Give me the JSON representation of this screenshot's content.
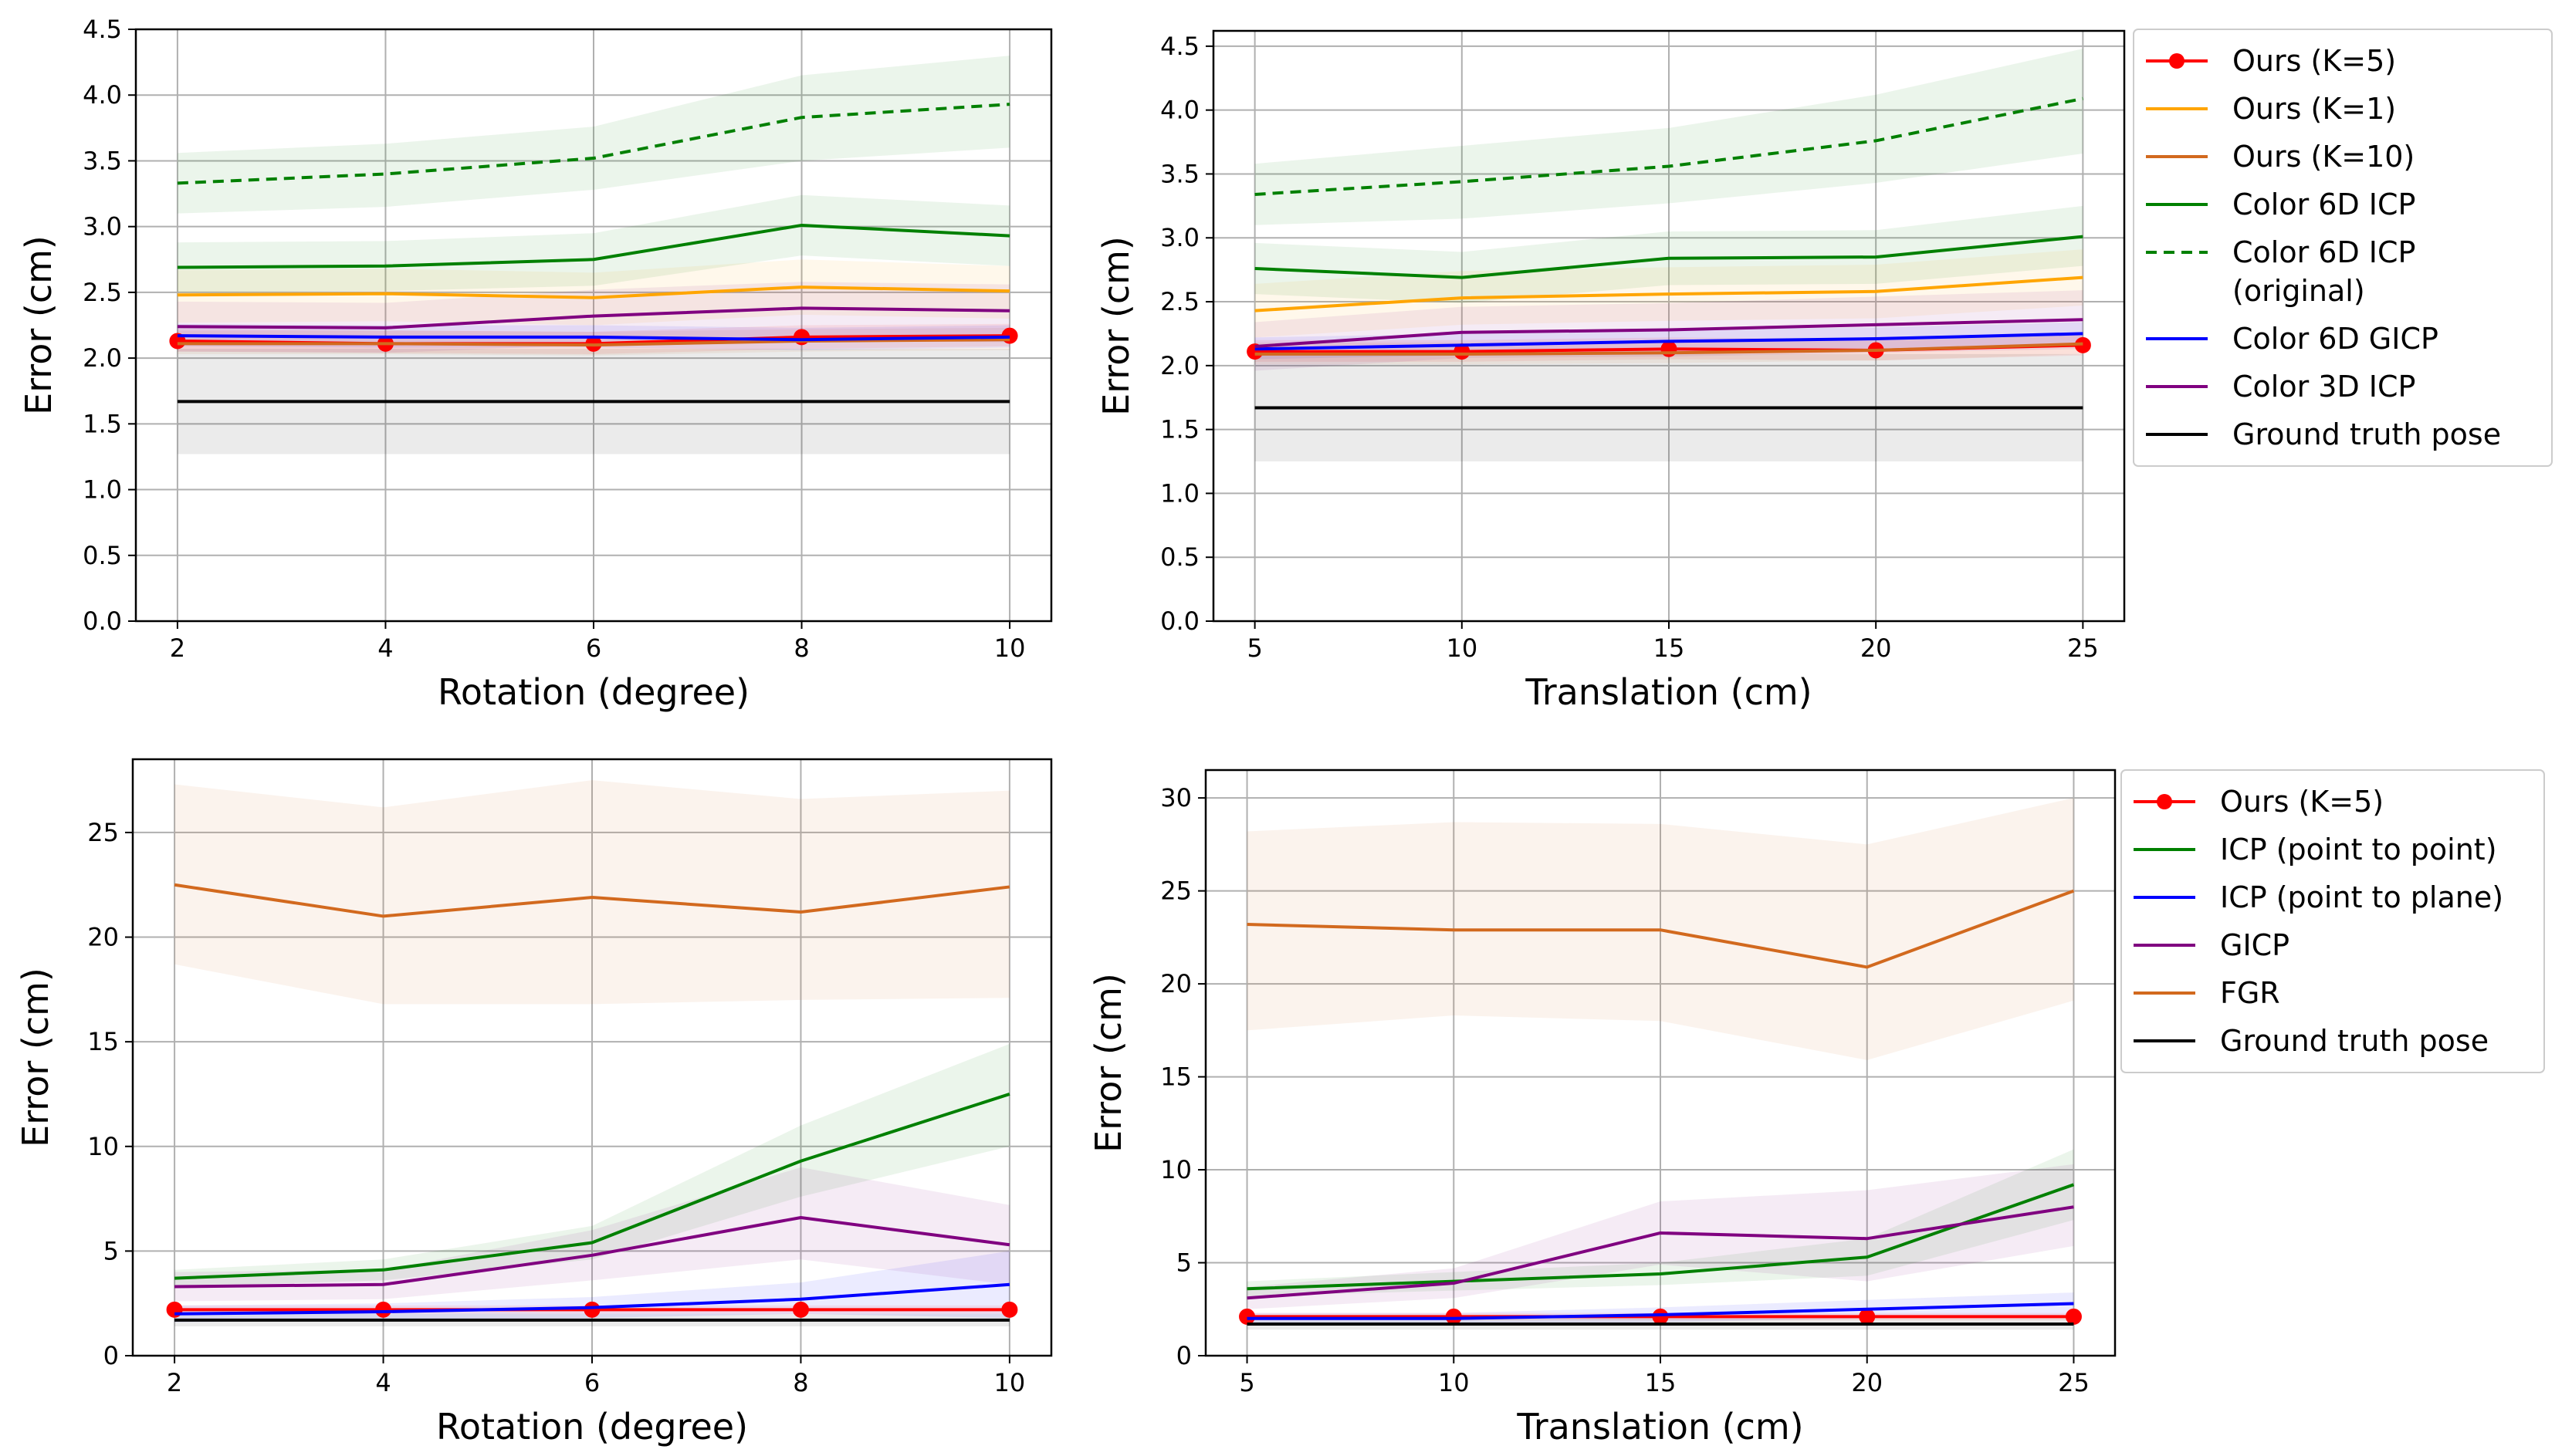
{
  "chart_data": [
    {
      "type": "line",
      "xlabel": "Rotation (degree)",
      "ylabel": "Error (cm)",
      "x": [
        2,
        4,
        6,
        8,
        10
      ],
      "xticks": [
        2,
        4,
        6,
        8,
        10
      ],
      "xticklabels": [
        "2",
        "4",
        "6",
        "8",
        "10"
      ],
      "xlim": [
        1.6,
        10.4
      ],
      "yticks": [
        0,
        0.5,
        1.0,
        1.5,
        2.0,
        2.5,
        3.0,
        3.5,
        4.0,
        4.5
      ],
      "yticklabels": [
        "0.0",
        "0.5",
        "1.0",
        "1.5",
        "2.0",
        "2.5",
        "3.0",
        "3.5",
        "4.0",
        "4.5"
      ],
      "ylim": [
        0,
        4.5
      ],
      "grid": true,
      "series": [
        {
          "name": "Ours (K=5)",
          "color": "#ff0000",
          "marker": "circle",
          "values": [
            2.13,
            2.11,
            2.11,
            2.16,
            2.17
          ],
          "band_low": [
            2.05,
            2.04,
            2.03,
            2.07,
            2.09
          ],
          "band_high": [
            2.23,
            2.21,
            2.2,
            2.25,
            2.26
          ]
        },
        {
          "name": "Ours (K=1)",
          "color": "#ffa500",
          "values": [
            2.48,
            2.49,
            2.46,
            2.54,
            2.51
          ],
          "band_low": [
            2.27,
            2.28,
            2.25,
            2.33,
            2.3
          ],
          "band_high": [
            2.67,
            2.68,
            2.65,
            2.75,
            2.7
          ]
        },
        {
          "name": "Ours (K=10)",
          "color": "#d2691e",
          "values": [
            2.11,
            2.11,
            2.1,
            2.13,
            2.14
          ],
          "band_low": [
            2.03,
            2.03,
            2.02,
            2.05,
            2.06
          ],
          "band_high": [
            2.21,
            2.21,
            2.2,
            2.22,
            2.23
          ]
        },
        {
          "name": "Color 6D ICP",
          "color": "#008000",
          "values": [
            2.69,
            2.7,
            2.75,
            3.01,
            2.93
          ],
          "band_low": [
            2.5,
            2.51,
            2.55,
            2.78,
            2.7
          ],
          "band_high": [
            2.88,
            2.89,
            2.95,
            3.24,
            3.16
          ]
        },
        {
          "name": "Color 6D ICP (original)",
          "color": "#008000",
          "dash": true,
          "values": [
            3.33,
            3.4,
            3.52,
            3.83,
            3.93
          ],
          "band_low": [
            3.1,
            3.15,
            3.28,
            3.5,
            3.6
          ],
          "band_high": [
            3.56,
            3.63,
            3.76,
            4.15,
            4.3
          ]
        },
        {
          "name": "Color 6D GICP",
          "color": "#0000ff",
          "values": [
            2.17,
            2.16,
            2.16,
            2.14,
            2.16
          ],
          "band_low": [
            2.09,
            2.08,
            2.08,
            2.06,
            2.08
          ],
          "band_high": [
            2.26,
            2.25,
            2.25,
            2.23,
            2.25
          ]
        },
        {
          "name": "Color 3D ICP",
          "color": "#800080",
          "values": [
            2.24,
            2.23,
            2.32,
            2.38,
            2.36
          ],
          "band_low": [
            2.05,
            2.04,
            2.1,
            2.14,
            2.12
          ],
          "band_high": [
            2.43,
            2.42,
            2.52,
            2.58,
            2.56
          ]
        },
        {
          "name": "Ground truth pose",
          "color": "#000000",
          "values": [
            1.67,
            1.67,
            1.67,
            1.67,
            1.67
          ],
          "band_low": [
            1.27,
            1.27,
            1.27,
            1.27,
            1.27
          ],
          "band_high": [
            2.07,
            2.07,
            2.07,
            2.07,
            2.07
          ]
        }
      ]
    },
    {
      "type": "line",
      "xlabel": "Translation (cm)",
      "ylabel": "Error (cm)",
      "x": [
        5,
        10,
        15,
        20,
        25
      ],
      "xticks": [
        5,
        10,
        15,
        20,
        25
      ],
      "xticklabels": [
        "5",
        "10",
        "15",
        "20",
        "25"
      ],
      "xlim": [
        4,
        26
      ],
      "yticks": [
        0,
        0.5,
        1.0,
        1.5,
        2.0,
        2.5,
        3.0,
        3.5,
        4.0,
        4.5
      ],
      "yticklabels": [
        "0.0",
        "0.5",
        "1.0",
        "1.5",
        "2.0",
        "2.5",
        "3.0",
        "3.5",
        "4.0",
        "4.5"
      ],
      "ylim": [
        0,
        4.62
      ],
      "grid": true,
      "legend": {
        "placement": "outside-right",
        "entries": [
          {
            "label": "Ours (K=5)",
            "color": "#ff0000",
            "marker": "circle"
          },
          {
            "label": "Ours (K=1)",
            "color": "#ffa500"
          },
          {
            "label": "Ours (K=10)",
            "color": "#d2691e"
          },
          {
            "label": "Color 6D ICP",
            "color": "#008000"
          },
          {
            "label": "Color 6D ICP\n(original)",
            "color": "#008000",
            "dash": true
          },
          {
            "label": "Color 6D GICP",
            "color": "#0000ff"
          },
          {
            "label": "Color 3D ICP",
            "color": "#800080"
          },
          {
            "label": "Ground truth pose",
            "color": "#000000"
          }
        ]
      },
      "series": [
        {
          "name": "Ours (K=5)",
          "color": "#ff0000",
          "marker": "circle",
          "values": [
            2.11,
            2.11,
            2.13,
            2.12,
            2.16
          ],
          "band_low": [
            2.03,
            2.03,
            2.05,
            2.04,
            2.08
          ],
          "band_high": [
            2.2,
            2.2,
            2.22,
            2.21,
            2.25
          ]
        },
        {
          "name": "Ours (K=1)",
          "color": "#ffa500",
          "values": [
            2.43,
            2.53,
            2.56,
            2.58,
            2.69
          ],
          "band_low": [
            2.22,
            2.32,
            2.35,
            2.37,
            2.47
          ],
          "band_high": [
            2.64,
            2.74,
            2.77,
            2.79,
            2.91
          ]
        },
        {
          "name": "Ours (K=10)",
          "color": "#d2691e",
          "values": [
            2.09,
            2.09,
            2.1,
            2.12,
            2.17
          ],
          "band_low": [
            2.01,
            2.01,
            2.02,
            2.04,
            2.09
          ],
          "band_high": [
            2.18,
            2.18,
            2.19,
            2.21,
            2.26
          ]
        },
        {
          "name": "Color 6D ICP",
          "color": "#008000",
          "values": [
            2.76,
            2.69,
            2.84,
            2.85,
            3.01
          ],
          "band_low": [
            2.56,
            2.49,
            2.63,
            2.64,
            2.78
          ],
          "band_high": [
            2.96,
            2.89,
            3.05,
            3.06,
            3.25
          ]
        },
        {
          "name": "Color 6D ICP (original)",
          "color": "#008000",
          "dash": true,
          "values": [
            3.34,
            3.44,
            3.56,
            3.76,
            4.09
          ],
          "band_low": [
            3.1,
            3.15,
            3.27,
            3.43,
            3.66
          ],
          "band_high": [
            3.58,
            3.72,
            3.86,
            4.12,
            4.48
          ]
        },
        {
          "name": "Color 6D GICP",
          "color": "#0000ff",
          "values": [
            2.13,
            2.16,
            2.19,
            2.21,
            2.25
          ],
          "band_low": [
            2.05,
            2.08,
            2.1,
            2.12,
            2.16
          ],
          "band_high": [
            2.22,
            2.25,
            2.28,
            2.3,
            2.34
          ]
        },
        {
          "name": "Color 3D ICP",
          "color": "#800080",
          "values": [
            2.15,
            2.26,
            2.28,
            2.32,
            2.36
          ],
          "band_low": [
            1.96,
            2.06,
            2.07,
            2.1,
            2.13
          ],
          "band_high": [
            2.34,
            2.46,
            2.49,
            2.54,
            2.59
          ]
        },
        {
          "name": "Ground truth pose",
          "color": "#000000",
          "values": [
            1.67,
            1.67,
            1.67,
            1.67,
            1.67
          ],
          "band_low": [
            1.25,
            1.25,
            1.25,
            1.25,
            1.25
          ],
          "band_high": [
            2.09,
            2.09,
            2.09,
            2.09,
            2.09
          ]
        }
      ]
    },
    {
      "type": "line",
      "xlabel": "Rotation (degree)",
      "ylabel": "Error (cm)",
      "x": [
        2,
        4,
        6,
        8,
        10
      ],
      "xticks": [
        2,
        4,
        6,
        8,
        10
      ],
      "xticklabels": [
        "2",
        "4",
        "6",
        "8",
        "10"
      ],
      "xlim": [
        1.6,
        10.4
      ],
      "yticks": [
        0,
        5,
        10,
        15,
        20,
        25
      ],
      "yticklabels": [
        "0",
        "5",
        "10",
        "15",
        "20",
        "25"
      ],
      "ylim": [
        0,
        28.5
      ],
      "grid": true,
      "series": [
        {
          "name": "Ours (K=5)",
          "color": "#ff0000",
          "marker": "circle",
          "values": [
            2.2,
            2.2,
            2.2,
            2.2,
            2.2
          ],
          "band_low": [
            2.0,
            2.0,
            2.0,
            2.0,
            2.0
          ],
          "band_high": [
            2.4,
            2.4,
            2.4,
            2.4,
            2.4
          ]
        },
        {
          "name": "ICP (point to point)",
          "color": "#008000",
          "values": [
            3.7,
            4.1,
            5.4,
            9.3,
            12.5
          ],
          "band_low": [
            3.3,
            3.6,
            4.6,
            7.6,
            10.0
          ],
          "band_high": [
            4.1,
            4.6,
            6.2,
            11.0,
            14.9
          ]
        },
        {
          "name": "ICP (point to plane)",
          "color": "#0000ff",
          "values": [
            2.0,
            2.1,
            2.3,
            2.7,
            3.4
          ],
          "band_low": [
            1.6,
            1.7,
            1.8,
            2.0,
            1.8
          ],
          "band_high": [
            2.4,
            2.5,
            2.8,
            3.5,
            5.0
          ]
        },
        {
          "name": "GICP",
          "color": "#800080",
          "values": [
            3.3,
            3.4,
            4.8,
            6.6,
            5.3
          ],
          "band_low": [
            2.6,
            2.7,
            3.6,
            4.6,
            3.4
          ],
          "band_high": [
            4.0,
            4.1,
            6.0,
            9.0,
            7.2
          ]
        },
        {
          "name": "FGR",
          "color": "#d2691e",
          "values": [
            22.5,
            21.0,
            21.9,
            21.2,
            22.4
          ],
          "band_low": [
            18.7,
            16.8,
            16.8,
            17.0,
            17.1
          ],
          "band_high": [
            27.3,
            26.2,
            27.5,
            26.6,
            27.0
          ]
        },
        {
          "name": "Ground truth pose",
          "color": "#000000",
          "values": [
            1.7,
            1.7,
            1.7,
            1.7,
            1.7
          ],
          "band_low": [
            1.4,
            1.4,
            1.4,
            1.4,
            1.4
          ],
          "band_high": [
            2.0,
            2.0,
            2.0,
            2.0,
            2.0
          ]
        }
      ]
    },
    {
      "type": "line",
      "xlabel": "Translation (cm)",
      "ylabel": "Error (cm)",
      "x": [
        5,
        10,
        15,
        20,
        25
      ],
      "xticks": [
        5,
        10,
        15,
        20,
        25
      ],
      "xticklabels": [
        "5",
        "10",
        "15",
        "20",
        "25"
      ],
      "xlim": [
        4,
        26
      ],
      "yticks": [
        0,
        5,
        10,
        15,
        20,
        25,
        30
      ],
      "yticklabels": [
        "0",
        "5",
        "10",
        "15",
        "20",
        "25",
        "30"
      ],
      "ylim": [
        0,
        31.5
      ],
      "grid": true,
      "legend": {
        "placement": "outside-right",
        "entries": [
          {
            "label": "Ours (K=5)",
            "color": "#ff0000",
            "marker": "circle"
          },
          {
            "label": "ICP (point to point)",
            "color": "#008000"
          },
          {
            "label": "ICP (point to plane)",
            "color": "#0000ff"
          },
          {
            "label": "GICP",
            "color": "#800080"
          },
          {
            "label": "FGR",
            "color": "#d2691e"
          },
          {
            "label": "Ground truth pose",
            "color": "#000000"
          }
        ]
      },
      "series": [
        {
          "name": "Ours (K=5)",
          "color": "#ff0000",
          "marker": "circle",
          "values": [
            2.1,
            2.1,
            2.1,
            2.1,
            2.1
          ],
          "band_low": [
            1.9,
            1.9,
            1.9,
            1.9,
            1.9
          ],
          "band_high": [
            2.3,
            2.3,
            2.3,
            2.3,
            2.3
          ]
        },
        {
          "name": "ICP (point to point)",
          "color": "#008000",
          "values": [
            3.6,
            4.0,
            4.4,
            5.3,
            9.2
          ],
          "band_low": [
            3.2,
            3.5,
            3.8,
            4.3,
            7.3
          ],
          "band_high": [
            4.0,
            4.5,
            5.0,
            6.3,
            11.1
          ]
        },
        {
          "name": "ICP (point to plane)",
          "color": "#0000ff",
          "values": [
            2.0,
            2.0,
            2.2,
            2.5,
            2.8
          ],
          "band_low": [
            1.7,
            1.7,
            1.8,
            2.0,
            2.2
          ],
          "band_high": [
            2.3,
            2.3,
            2.6,
            3.0,
            3.4
          ]
        },
        {
          "name": "GICP",
          "color": "#800080",
          "values": [
            3.1,
            3.9,
            6.6,
            6.3,
            8.0
          ],
          "band_low": [
            2.5,
            3.1,
            4.9,
            4.0,
            5.9
          ],
          "band_high": [
            3.7,
            4.7,
            8.3,
            8.9,
            10.3
          ]
        },
        {
          "name": "FGR",
          "color": "#d2691e",
          "values": [
            23.2,
            22.9,
            22.9,
            20.9,
            25.0
          ],
          "band_low": [
            17.5,
            18.3,
            18.0,
            15.9,
            19.1
          ],
          "band_high": [
            28.2,
            28.7,
            28.6,
            27.5,
            30.0
          ]
        },
        {
          "name": "Ground truth pose",
          "color": "#000000",
          "values": [
            1.7,
            1.7,
            1.7,
            1.7,
            1.7
          ],
          "band_low": [
            1.4,
            1.4,
            1.4,
            1.4,
            1.4
          ],
          "band_high": [
            2.0,
            2.0,
            2.0,
            2.0,
            2.0
          ]
        }
      ]
    }
  ]
}
